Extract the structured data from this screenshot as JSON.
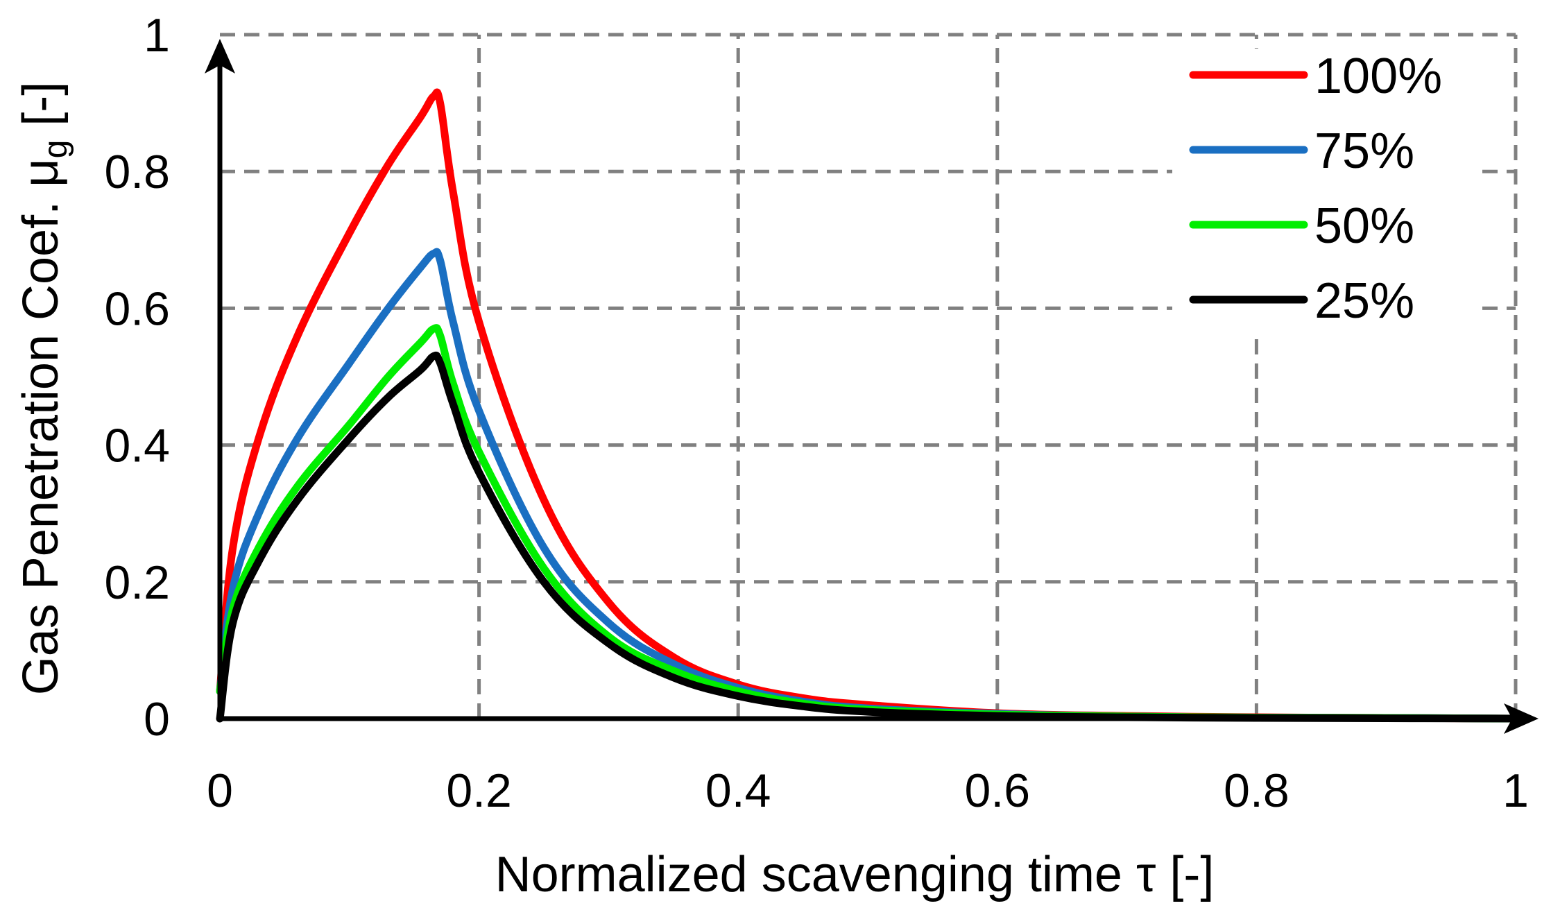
{
  "chart_data": {
    "type": "line",
    "title": "",
    "xlabel": "Normalized scavenging time τ [-]",
    "ylabel_main": "Gas Penetration Coef. μ",
    "ylabel_sub": "g",
    "ylabel_suffix": " [-]",
    "xlim": [
      0,
      1
    ],
    "ylim": [
      0,
      1
    ],
    "xticks": [
      0,
      0.2,
      0.4,
      0.6,
      0.8,
      1
    ],
    "yticks": [
      0,
      0.2,
      0.4,
      0.6,
      0.8,
      1
    ],
    "xtick_labels": [
      "0",
      "0.2",
      "0.4",
      "0.6",
      "0.8",
      "1"
    ],
    "ytick_labels": [
      "0",
      "0.2",
      "0.4",
      "0.6",
      "0.8",
      "1"
    ],
    "grid": true,
    "legend_position": "top-right",
    "series": [
      {
        "name": "100%",
        "color": "#ff0000",
        "x": [
          0,
          0.01,
          0.03,
          0.06,
          0.1,
          0.13,
          0.155,
          0.165,
          0.17,
          0.18,
          0.2,
          0.25,
          0.3,
          0.35,
          0.4,
          0.45,
          0.5,
          0.6,
          0.7,
          0.8,
          0.9,
          1.0
        ],
        "y": [
          0.04,
          0.25,
          0.41,
          0.56,
          0.71,
          0.81,
          0.88,
          0.91,
          0.9,
          0.77,
          0.58,
          0.32,
          0.17,
          0.09,
          0.05,
          0.03,
          0.02,
          0.008,
          0.004,
          0.002,
          0.001,
          0.0
        ]
      },
      {
        "name": "75%",
        "color": "#1a6fc2",
        "x": [
          0,
          0.01,
          0.03,
          0.06,
          0.1,
          0.13,
          0.155,
          0.165,
          0.17,
          0.18,
          0.2,
          0.25,
          0.3,
          0.35,
          0.4,
          0.45,
          0.5,
          0.6,
          0.7,
          0.8,
          0.9,
          1.0
        ],
        "y": [
          0.04,
          0.19,
          0.3,
          0.41,
          0.52,
          0.6,
          0.66,
          0.68,
          0.67,
          0.58,
          0.45,
          0.25,
          0.14,
          0.08,
          0.045,
          0.025,
          0.015,
          0.007,
          0.003,
          0.0015,
          0.001,
          0.0
        ]
      },
      {
        "name": "50%",
        "color": "#00ee00",
        "x": [
          0,
          0.01,
          0.03,
          0.06,
          0.1,
          0.13,
          0.155,
          0.165,
          0.17,
          0.18,
          0.2,
          0.25,
          0.3,
          0.35,
          0.4,
          0.45,
          0.5,
          0.6,
          0.7,
          0.8,
          0.9,
          1.0
        ],
        "y": [
          0.04,
          0.16,
          0.25,
          0.34,
          0.43,
          0.5,
          0.55,
          0.57,
          0.56,
          0.49,
          0.39,
          0.22,
          0.12,
          0.07,
          0.04,
          0.022,
          0.013,
          0.006,
          0.003,
          0.0015,
          0.001,
          0.0
        ]
      },
      {
        "name": "25%",
        "color": "#000000",
        "x": [
          0,
          0.01,
          0.03,
          0.06,
          0.1,
          0.13,
          0.155,
          0.165,
          0.17,
          0.18,
          0.2,
          0.25,
          0.3,
          0.35,
          0.4,
          0.45,
          0.5,
          0.6,
          0.7,
          0.8,
          0.9,
          1.0
        ],
        "y": [
          0.0,
          0.14,
          0.23,
          0.32,
          0.41,
          0.47,
          0.51,
          0.53,
          0.52,
          0.46,
          0.36,
          0.2,
          0.11,
          0.06,
          0.033,
          0.018,
          0.01,
          0.004,
          0.002,
          0.001,
          0.0005,
          0.0
        ]
      }
    ]
  }
}
